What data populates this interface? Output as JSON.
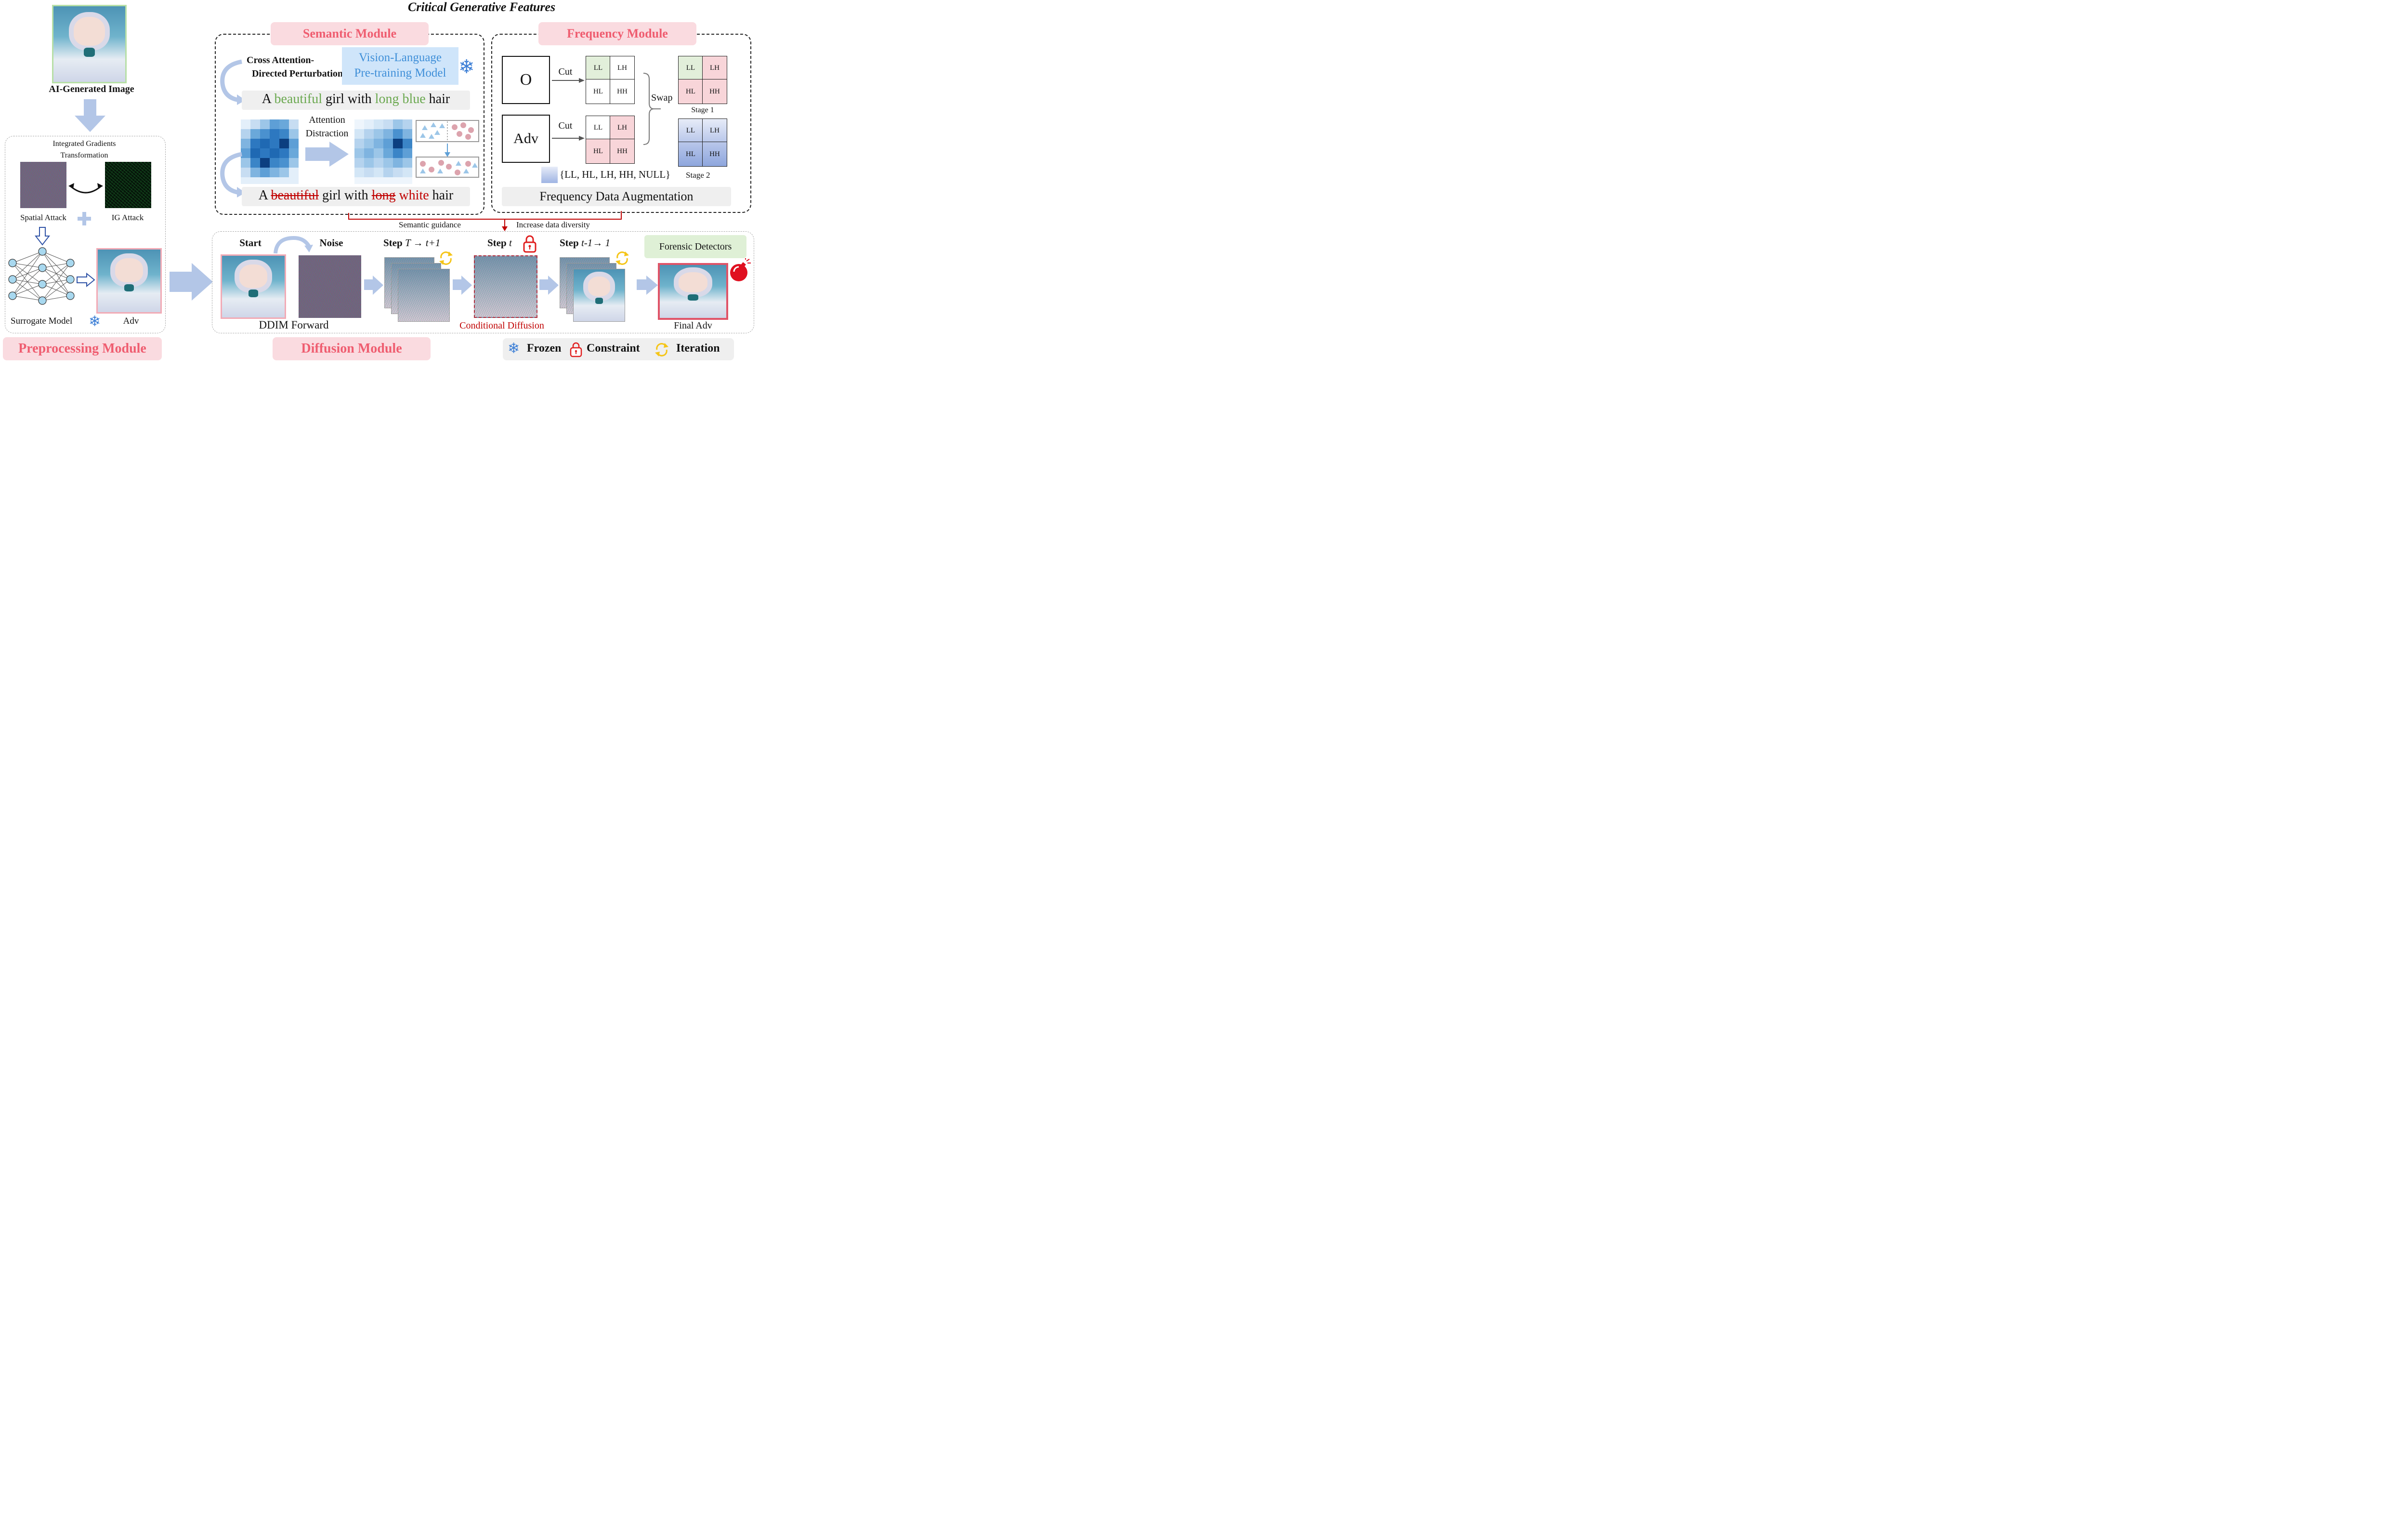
{
  "title": "Critical Generative Features",
  "preprocessing": {
    "input_caption": "AI-Generated Image",
    "ig_title_line1": "Integrated Gradients",
    "ig_title_line2": "Transformation",
    "spatial_attack": "Spatial Attack",
    "ig_attack": "IG Attack",
    "surrogate_model": "Surrogate Model",
    "adv": "Adv",
    "module_label": "Preprocessing Module"
  },
  "semantic": {
    "module_label": "Semantic Module",
    "cross_attention_line1": "Cross Attention-",
    "cross_attention_line2": "Directed Perturbation",
    "vlp_line1": "Vision-Language",
    "vlp_line2": "Pre-training Model",
    "prompt_clean": {
      "a": "A",
      "w1": "beautiful",
      "m1": "girl with",
      "w2": "long blue",
      "m2": "hair"
    },
    "attention_line1": "Attention",
    "attention_line2": "Distraction",
    "prompt_adv": {
      "a": "A",
      "s1": "beautiful",
      "m1": "girl with",
      "s2": "long",
      "w3": "white",
      "m2": "hair"
    }
  },
  "frequency": {
    "module_label": "Frequency Module",
    "o": "O",
    "adv": "Adv",
    "cut1": "Cut",
    "cut2": "Cut",
    "tiles": [
      "LL",
      "LH",
      "HL",
      "HH"
    ],
    "swap": "Swap",
    "stage1": "Stage 1",
    "stage2_set": "{LL, HL, LH, HH, NULL}",
    "stage2": "Stage 2",
    "augmentation": "Frequency Data Augmentation"
  },
  "links": {
    "semantic_guidance": "Semantic guidance",
    "increase_diversity": "Increase data diversity"
  },
  "diffusion": {
    "module_label": "Diffusion Module",
    "start": "Start",
    "noise": "Noise",
    "step_word": "Step",
    "step_a_math": "T → t+1",
    "step_b_math": "t",
    "step_c_math": "t-1→ 1",
    "ddim_forward": "DDIM Forward",
    "conditional_diffusion": "Conditional Diffusion",
    "forensic_detectors": "Forensic Detectors",
    "final_adv": "Final Adv"
  },
  "legend": {
    "frozen": "Frozen",
    "constraint": "Constraint",
    "iteration": "Iteration"
  },
  "colors": {
    "pink_label_bg": "#fadbe0",
    "pink_label_text": "#ef5d70",
    "green_word": "#6aa84f",
    "red_word": "#c00000",
    "vlp_bg": "#cfe5fa",
    "vlp_text": "#3f8fd8",
    "link_red": "#c00000"
  }
}
